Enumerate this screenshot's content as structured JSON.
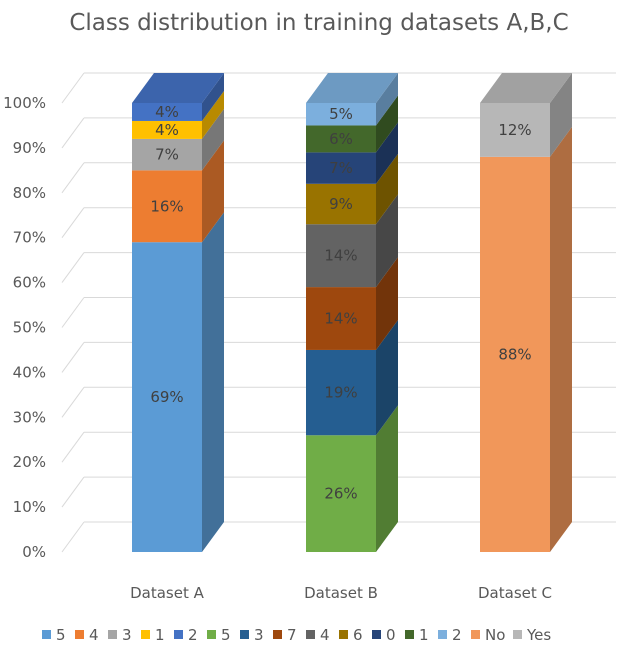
{
  "chart_data": {
    "type": "bar",
    "subtype": "stacked-100-percent-3d",
    "title": "Class distribution in training datasets A,B,C",
    "xlabel": "",
    "ylabel": "",
    "ylim": [
      0,
      100
    ],
    "yticks": [
      "0%",
      "10%",
      "20%",
      "30%",
      "40%",
      "50%",
      "60%",
      "70%",
      "80%",
      "90%",
      "100%"
    ],
    "grid": true,
    "legend_position": "bottom",
    "categories": [
      "Dataset A",
      "Dataset B",
      "Dataset C"
    ],
    "series": [
      {
        "name": "5",
        "category": "Dataset A",
        "value": 69,
        "label": "69%",
        "color": "#5B9BD5"
      },
      {
        "name": "4",
        "category": "Dataset A",
        "value": 16,
        "label": "16%",
        "color": "#ED7D31"
      },
      {
        "name": "3",
        "category": "Dataset A",
        "value": 7,
        "label": "7%",
        "color": "#A5A5A5"
      },
      {
        "name": "1",
        "category": "Dataset A",
        "value": 4,
        "label": "4%",
        "color": "#FFC000"
      },
      {
        "name": "2",
        "category": "Dataset A",
        "value": 4,
        "label": "4%",
        "color": "#4472C4"
      },
      {
        "name": "5",
        "category": "Dataset B",
        "value": 26,
        "label": "26%",
        "color": "#70AD47"
      },
      {
        "name": "3",
        "category": "Dataset B",
        "value": 19,
        "label": "19%",
        "color": "#255E91"
      },
      {
        "name": "7",
        "category": "Dataset B",
        "value": 14,
        "label": "14%",
        "color": "#9E480E"
      },
      {
        "name": "4",
        "category": "Dataset B",
        "value": 14,
        "label": "14%",
        "color": "#636363"
      },
      {
        "name": "6",
        "category": "Dataset B",
        "value": 9,
        "label": "9%",
        "color": "#997300"
      },
      {
        "name": "0",
        "category": "Dataset B",
        "value": 7,
        "label": "7%",
        "color": "#264478"
      },
      {
        "name": "1",
        "category": "Dataset B",
        "value": 6,
        "label": "6%",
        "color": "#43682B"
      },
      {
        "name": "2",
        "category": "Dataset B",
        "value": 5,
        "label": "5%",
        "color": "#7CAFDD"
      },
      {
        "name": "No",
        "category": "Dataset C",
        "value": 88,
        "label": "88%",
        "color": "#F1975A"
      },
      {
        "name": "Yes",
        "category": "Dataset C",
        "value": 12,
        "label": "12%",
        "color": "#B7B7B7"
      }
    ]
  }
}
